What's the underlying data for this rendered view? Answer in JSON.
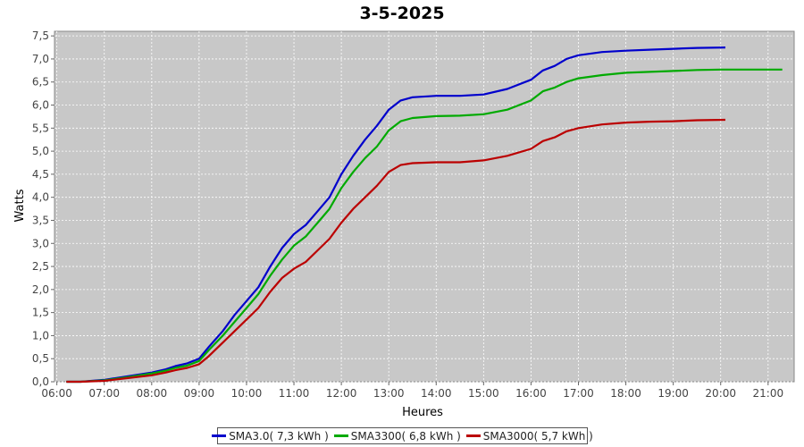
{
  "chart_data": {
    "type": "line",
    "title": "3-5-2025",
    "xlabel": "Heures",
    "ylabel": "Watts",
    "xlim": [
      5.95,
      21.55
    ],
    "ylim": [
      0,
      7.6
    ],
    "grid": true,
    "x_ticks": [
      6,
      7,
      8,
      9,
      10,
      11,
      12,
      13,
      14,
      15,
      16,
      17,
      18,
      19,
      20,
      21
    ],
    "x_tick_labels": [
      "06:00",
      "07:00",
      "08:00",
      "09:00",
      "10:00",
      "11:00",
      "12:00",
      "13:00",
      "14:00",
      "15:00",
      "16:00",
      "17:00",
      "18:00",
      "19:00",
      "20:00",
      "21:00"
    ],
    "y_ticks": [
      0,
      0.5,
      1,
      1.5,
      2,
      2.5,
      3,
      3.5,
      4,
      4.5,
      5,
      5.5,
      6,
      6.5,
      7,
      7.5
    ],
    "y_tick_labels": [
      "0,0",
      "0,5",
      "1,0",
      "1,5",
      "2,0",
      "2,5",
      "3,0",
      "3,5",
      "4,0",
      "4,5",
      "5,0",
      "5,5",
      "6,0",
      "6,5",
      "7,0",
      "7,5"
    ],
    "legend_position": "bottom",
    "series": [
      {
        "name": "SMA3.0( 7,3 kWh )",
        "color": "#0000cc",
        "points": [
          [
            6.2,
            0
          ],
          [
            6.5,
            0
          ],
          [
            7.0,
            0.04
          ],
          [
            7.5,
            0.12
          ],
          [
            8.0,
            0.2
          ],
          [
            8.3,
            0.27
          ],
          [
            8.5,
            0.34
          ],
          [
            8.75,
            0.4
          ],
          [
            9.0,
            0.5
          ],
          [
            9.2,
            0.75
          ],
          [
            9.5,
            1.1
          ],
          [
            9.75,
            1.45
          ],
          [
            10.0,
            1.75
          ],
          [
            10.25,
            2.05
          ],
          [
            10.5,
            2.5
          ],
          [
            10.75,
            2.9
          ],
          [
            11.0,
            3.2
          ],
          [
            11.25,
            3.4
          ],
          [
            11.5,
            3.7
          ],
          [
            11.75,
            4.0
          ],
          [
            12.0,
            4.5
          ],
          [
            12.25,
            4.9
          ],
          [
            12.5,
            5.25
          ],
          [
            12.75,
            5.55
          ],
          [
            13.0,
            5.9
          ],
          [
            13.25,
            6.1
          ],
          [
            13.5,
            6.17
          ],
          [
            14.0,
            6.2
          ],
          [
            14.5,
            6.2
          ],
          [
            15.0,
            6.23
          ],
          [
            15.5,
            6.35
          ],
          [
            16.0,
            6.55
          ],
          [
            16.25,
            6.75
          ],
          [
            16.5,
            6.85
          ],
          [
            16.75,
            7.0
          ],
          [
            17.0,
            7.08
          ],
          [
            17.5,
            7.15
          ],
          [
            18.0,
            7.18
          ],
          [
            18.5,
            7.2
          ],
          [
            19.0,
            7.22
          ],
          [
            19.5,
            7.24
          ],
          [
            20.1,
            7.25
          ]
        ]
      },
      {
        "name": "SMA3300( 6,8 kWh )",
        "color": "#00aa00",
        "points": [
          [
            6.2,
            0
          ],
          [
            6.5,
            0
          ],
          [
            7.0,
            0.03
          ],
          [
            7.5,
            0.1
          ],
          [
            8.0,
            0.18
          ],
          [
            8.3,
            0.24
          ],
          [
            8.5,
            0.3
          ],
          [
            8.75,
            0.35
          ],
          [
            9.0,
            0.45
          ],
          [
            9.2,
            0.68
          ],
          [
            9.5,
            1.0
          ],
          [
            9.75,
            1.3
          ],
          [
            10.0,
            1.6
          ],
          [
            10.25,
            1.9
          ],
          [
            10.5,
            2.3
          ],
          [
            10.75,
            2.65
          ],
          [
            11.0,
            2.95
          ],
          [
            11.25,
            3.15
          ],
          [
            11.5,
            3.45
          ],
          [
            11.75,
            3.75
          ],
          [
            12.0,
            4.2
          ],
          [
            12.25,
            4.55
          ],
          [
            12.5,
            4.85
          ],
          [
            12.75,
            5.1
          ],
          [
            13.0,
            5.45
          ],
          [
            13.25,
            5.65
          ],
          [
            13.5,
            5.72
          ],
          [
            14.0,
            5.76
          ],
          [
            14.5,
            5.77
          ],
          [
            15.0,
            5.8
          ],
          [
            15.5,
            5.9
          ],
          [
            16.0,
            6.1
          ],
          [
            16.25,
            6.3
          ],
          [
            16.5,
            6.38
          ],
          [
            16.75,
            6.5
          ],
          [
            17.0,
            6.58
          ],
          [
            17.5,
            6.65
          ],
          [
            18.0,
            6.7
          ],
          [
            18.5,
            6.72
          ],
          [
            19.0,
            6.74
          ],
          [
            19.5,
            6.76
          ],
          [
            20.0,
            6.77
          ],
          [
            20.5,
            6.77
          ],
          [
            21.0,
            6.77
          ],
          [
            21.3,
            6.77
          ]
        ]
      },
      {
        "name": "SMA3000( 5,7 kWh )",
        "color": "#bb0000",
        "points": [
          [
            6.2,
            0
          ],
          [
            6.5,
            0
          ],
          [
            7.0,
            0.02
          ],
          [
            7.5,
            0.08
          ],
          [
            8.0,
            0.14
          ],
          [
            8.3,
            0.2
          ],
          [
            8.5,
            0.25
          ],
          [
            8.75,
            0.3
          ],
          [
            9.0,
            0.38
          ],
          [
            9.2,
            0.55
          ],
          [
            9.5,
            0.85
          ],
          [
            9.75,
            1.1
          ],
          [
            10.0,
            1.35
          ],
          [
            10.25,
            1.6
          ],
          [
            10.5,
            1.95
          ],
          [
            10.75,
            2.25
          ],
          [
            11.0,
            2.45
          ],
          [
            11.25,
            2.6
          ],
          [
            11.5,
            2.85
          ],
          [
            11.75,
            3.1
          ],
          [
            12.0,
            3.45
          ],
          [
            12.25,
            3.75
          ],
          [
            12.5,
            4.0
          ],
          [
            12.75,
            4.25
          ],
          [
            13.0,
            4.55
          ],
          [
            13.25,
            4.7
          ],
          [
            13.5,
            4.74
          ],
          [
            14.0,
            4.76
          ],
          [
            14.5,
            4.76
          ],
          [
            15.0,
            4.8
          ],
          [
            15.5,
            4.9
          ],
          [
            16.0,
            5.05
          ],
          [
            16.25,
            5.22
          ],
          [
            16.5,
            5.3
          ],
          [
            16.75,
            5.43
          ],
          [
            17.0,
            5.5
          ],
          [
            17.5,
            5.58
          ],
          [
            18.0,
            5.62
          ],
          [
            18.5,
            5.64
          ],
          [
            19.0,
            5.65
          ],
          [
            19.5,
            5.67
          ],
          [
            20.1,
            5.68
          ]
        ]
      }
    ]
  }
}
